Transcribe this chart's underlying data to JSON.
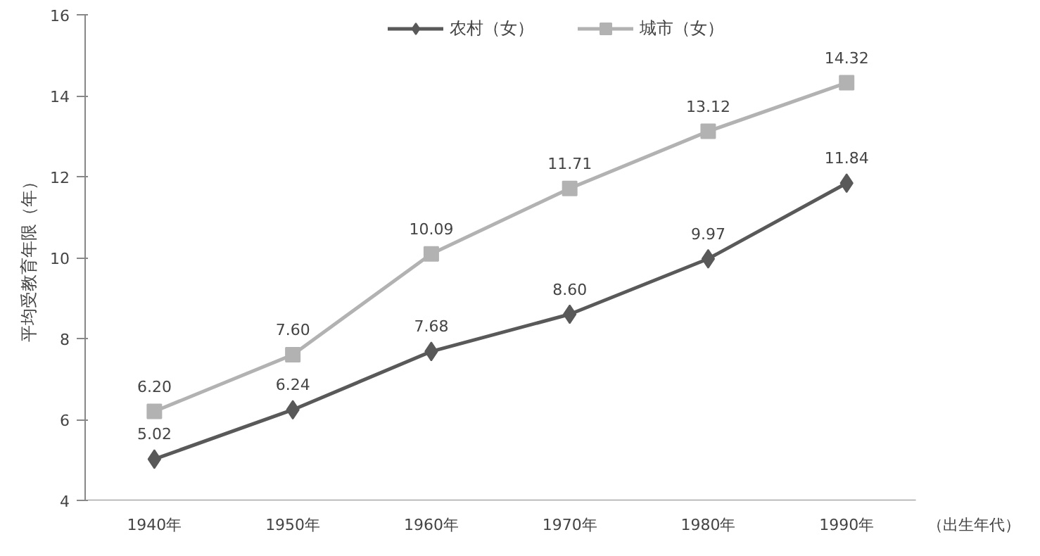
{
  "chart_data": {
    "type": "line",
    "ylabel": "平均受教育年限（年）",
    "xlabel": "（出生年代）",
    "categories": [
      "1940年",
      "1950年",
      "1960年",
      "1970年",
      "1980年",
      "1990年"
    ],
    "series": [
      {
        "name": "农村（女）",
        "color": "#595959",
        "marker": "diamond",
        "values": [
          5.02,
          6.24,
          7.68,
          8.6,
          9.97,
          11.84
        ],
        "value_labels": [
          "5.02",
          "6.24",
          "7.68",
          "8.60",
          "9.97",
          "11.84"
        ]
      },
      {
        "name": "城市（女）",
        "color": "#b2b2b2",
        "marker": "square",
        "values": [
          6.2,
          7.6,
          10.09,
          11.71,
          13.12,
          14.32
        ],
        "value_labels": [
          "6.20",
          "7.60",
          "10.09",
          "11.71",
          "13.12",
          "14.32"
        ]
      }
    ],
    "ylim": [
      4,
      16
    ],
    "yticks": [
      4,
      6,
      8,
      10,
      12,
      14,
      16
    ],
    "legend": "top"
  }
}
